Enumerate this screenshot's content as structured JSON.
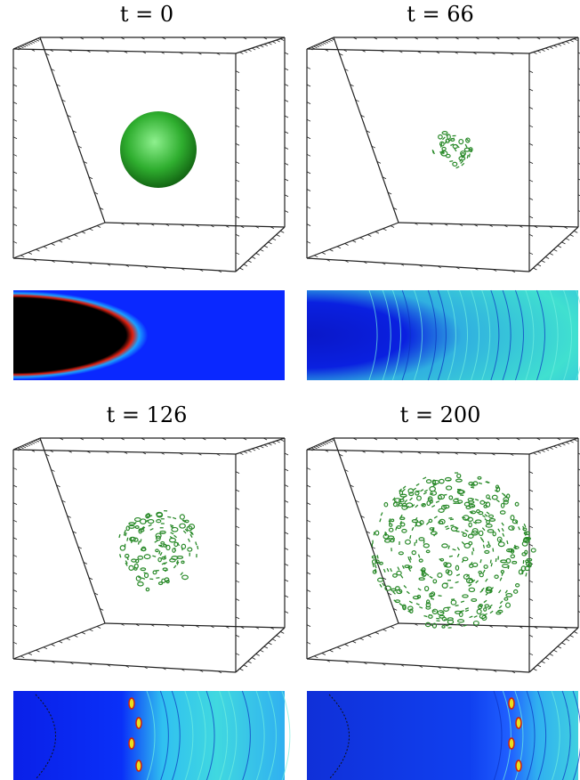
{
  "panels": [
    {
      "label": "t = 0"
    },
    {
      "label": "t = 66"
    },
    {
      "label": "t = 126"
    },
    {
      "label": "t = 200"
    }
  ]
}
